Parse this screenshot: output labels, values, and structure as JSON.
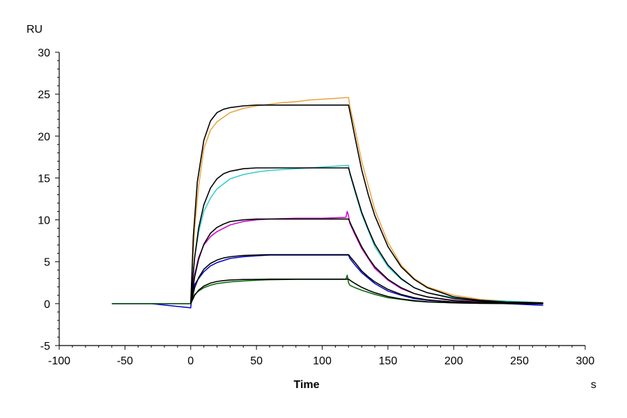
{
  "chart_data": {
    "type": "line",
    "title": "",
    "xlabel": "Time",
    "xunit": "s",
    "yunit": "RU",
    "xlim": [
      -100,
      300
    ],
    "ylim": [
      -5,
      30
    ],
    "xticks": [
      -100,
      -50,
      0,
      50,
      100,
      150,
      200,
      250,
      300
    ],
    "yticks": [
      -5,
      0,
      5,
      10,
      15,
      20,
      25,
      30
    ],
    "grid": false,
    "legend": "none",
    "colors": {
      "axis": "#000000",
      "fit": "#000000",
      "series": [
        "#e8a33c",
        "#33cccc",
        "#cc00cc",
        "#0000cc",
        "#006600"
      ]
    },
    "series": [
      {
        "role": "measured",
        "color": "#e8a33c",
        "x": [
          -60,
          -30,
          0,
          1,
          3,
          6,
          10,
          15,
          20,
          30,
          40,
          50,
          60,
          70,
          80,
          90,
          100,
          110,
          119,
          120,
          121,
          125,
          130,
          140,
          150,
          160,
          170,
          180,
          200,
          220,
          240,
          268
        ],
        "y": [
          0,
          0,
          0,
          3.5,
          9,
          14,
          18.5,
          20.7,
          21.7,
          22.8,
          23.3,
          23.6,
          23.8,
          24.0,
          24.1,
          24.3,
          24.4,
          24.5,
          24.6,
          24.6,
          23.6,
          20.8,
          17.0,
          11.2,
          7.3,
          4.6,
          3.0,
          2.0,
          1.0,
          0.5,
          0.3,
          0.1
        ]
      },
      {
        "role": "fit",
        "color": "#000000",
        "x": [
          0,
          2,
          5,
          10,
          15,
          20,
          25,
          30,
          40,
          50,
          60,
          80,
          100,
          119,
          120,
          122,
          125,
          130,
          135,
          140,
          150,
          160,
          170,
          180,
          200,
          220,
          240,
          268
        ],
        "y": [
          0,
          8,
          14.5,
          19.5,
          21.8,
          22.8,
          23.2,
          23.4,
          23.6,
          23.7,
          23.7,
          23.7,
          23.7,
          23.7,
          23.7,
          22.2,
          19.8,
          16.0,
          13.0,
          10.5,
          6.8,
          4.4,
          2.9,
          1.9,
          0.8,
          0.4,
          0.2,
          0.1
        ]
      },
      {
        "role": "measured",
        "color": "#33cccc",
        "x": [
          -60,
          -30,
          0,
          1,
          3,
          6,
          10,
          15,
          20,
          30,
          40,
          50,
          60,
          70,
          80,
          100,
          119,
          120,
          121,
          125,
          130,
          140,
          150,
          160,
          170,
          180,
          200,
          220,
          240,
          268
        ],
        "y": [
          0,
          0,
          0,
          2.5,
          5.5,
          8.5,
          11,
          12.6,
          13.7,
          14.9,
          15.4,
          15.7,
          15.9,
          16.0,
          16.1,
          16.3,
          16.5,
          16.5,
          15.5,
          13.3,
          10.7,
          6.8,
          4.4,
          2.9,
          1.9,
          1.3,
          0.7,
          0.4,
          0.3,
          0.1
        ]
      },
      {
        "role": "fit",
        "color": "#000000",
        "x": [
          0,
          3,
          6,
          10,
          15,
          20,
          25,
          30,
          40,
          50,
          60,
          80,
          100,
          119,
          120,
          122,
          125,
          130,
          135,
          140,
          150,
          160,
          170,
          180,
          200,
          220,
          240,
          268
        ],
        "y": [
          0,
          5.5,
          9,
          11.8,
          13.8,
          14.9,
          15.5,
          15.8,
          16.1,
          16.2,
          16.2,
          16.2,
          16.2,
          16.2,
          16.2,
          15.1,
          13.5,
          10.9,
          8.9,
          7.1,
          4.6,
          3.0,
          1.9,
          1.3,
          0.6,
          0.3,
          0.15,
          0.05
        ]
      },
      {
        "role": "measured",
        "color": "#cc00cc",
        "x": [
          -60,
          -30,
          0,
          1,
          3,
          6,
          10,
          15,
          20,
          30,
          40,
          50,
          60,
          80,
          100,
          118,
          119,
          120,
          121,
          125,
          130,
          140,
          150,
          160,
          170,
          180,
          200,
          220,
          240,
          268
        ],
        "y": [
          0,
          0,
          0,
          1.5,
          3.5,
          5.5,
          7,
          8,
          8.6,
          9.4,
          9.8,
          10.0,
          10.1,
          10.2,
          10.2,
          10.3,
          11,
          10.5,
          9.6,
          8.2,
          6.6,
          4.2,
          2.8,
          1.8,
          1.2,
          0.8,
          0.4,
          0.2,
          0.1,
          0.0
        ]
      },
      {
        "role": "fit",
        "color": "#000000",
        "x": [
          0,
          3,
          6,
          10,
          15,
          20,
          25,
          30,
          40,
          50,
          60,
          80,
          100,
          119,
          120,
          122,
          125,
          130,
          135,
          140,
          150,
          160,
          170,
          180,
          200,
          220,
          240,
          268
        ],
        "y": [
          0,
          3.2,
          5.3,
          7.1,
          8.4,
          9.1,
          9.5,
          9.8,
          10.0,
          10.1,
          10.1,
          10.1,
          10.1,
          10.1,
          10.1,
          9.4,
          8.4,
          6.8,
          5.5,
          4.4,
          2.9,
          1.9,
          1.2,
          0.8,
          0.35,
          0.15,
          0.07,
          0.02
        ]
      },
      {
        "role": "measured",
        "color": "#0000cc",
        "x": [
          -60,
          -30,
          0,
          1,
          3,
          6,
          10,
          15,
          20,
          30,
          40,
          50,
          60,
          80,
          100,
          119,
          120,
          121,
          125,
          130,
          140,
          150,
          160,
          170,
          180,
          200,
          220,
          240,
          268
        ],
        "y": [
          0,
          0,
          -0.5,
          1.2,
          2.3,
          3.0,
          3.8,
          4.5,
          4.9,
          5.4,
          5.6,
          5.7,
          5.8,
          5.8,
          5.8,
          5.8,
          5.8,
          5.4,
          4.6,
          3.7,
          2.4,
          1.5,
          1.0,
          0.6,
          0.4,
          0.2,
          0.1,
          0.0,
          -0.2
        ]
      },
      {
        "role": "fit",
        "color": "#000000",
        "x": [
          0,
          3,
          6,
          10,
          15,
          20,
          25,
          30,
          40,
          50,
          60,
          80,
          100,
          119,
          120,
          122,
          125,
          130,
          135,
          140,
          150,
          160,
          170,
          180,
          200,
          220,
          240,
          268
        ],
        "y": [
          0,
          1.9,
          3.1,
          4.1,
          4.8,
          5.2,
          5.45,
          5.6,
          5.75,
          5.8,
          5.85,
          5.85,
          5.85,
          5.85,
          5.85,
          5.45,
          4.9,
          3.9,
          3.2,
          2.6,
          1.7,
          1.1,
          0.7,
          0.45,
          0.2,
          0.08,
          0.03,
          0.0
        ]
      },
      {
        "role": "measured",
        "color": "#006600",
        "x": [
          -60,
          -30,
          0,
          1,
          3,
          6,
          10,
          15,
          20,
          30,
          40,
          50,
          60,
          80,
          100,
          118,
          119,
          120,
          121,
          125,
          130,
          140,
          150,
          160,
          170,
          180,
          200,
          220,
          240,
          268
        ],
        "y": [
          0,
          0,
          0,
          0.6,
          1.1,
          1.5,
          1.9,
          2.2,
          2.4,
          2.6,
          2.7,
          2.8,
          2.85,
          2.9,
          2.9,
          2.9,
          3.4,
          2.5,
          2.2,
          1.9,
          1.6,
          1.1,
          0.7,
          0.5,
          0.3,
          0.2,
          0.1,
          0.05,
          0.0,
          0.0
        ]
      },
      {
        "role": "fit",
        "color": "#000000",
        "x": [
          0,
          3,
          6,
          10,
          15,
          20,
          25,
          30,
          40,
          50,
          60,
          80,
          100,
          119,
          120,
          122,
          125,
          130,
          135,
          140,
          150,
          160,
          170,
          180,
          200,
          220,
          240,
          268
        ],
        "y": [
          0,
          1.0,
          1.6,
          2.1,
          2.45,
          2.65,
          2.75,
          2.82,
          2.88,
          2.9,
          2.92,
          2.92,
          2.92,
          2.92,
          2.92,
          2.7,
          2.4,
          1.95,
          1.6,
          1.3,
          0.85,
          0.55,
          0.35,
          0.22,
          0.1,
          0.04,
          0.02,
          0.0
        ]
      }
    ]
  }
}
